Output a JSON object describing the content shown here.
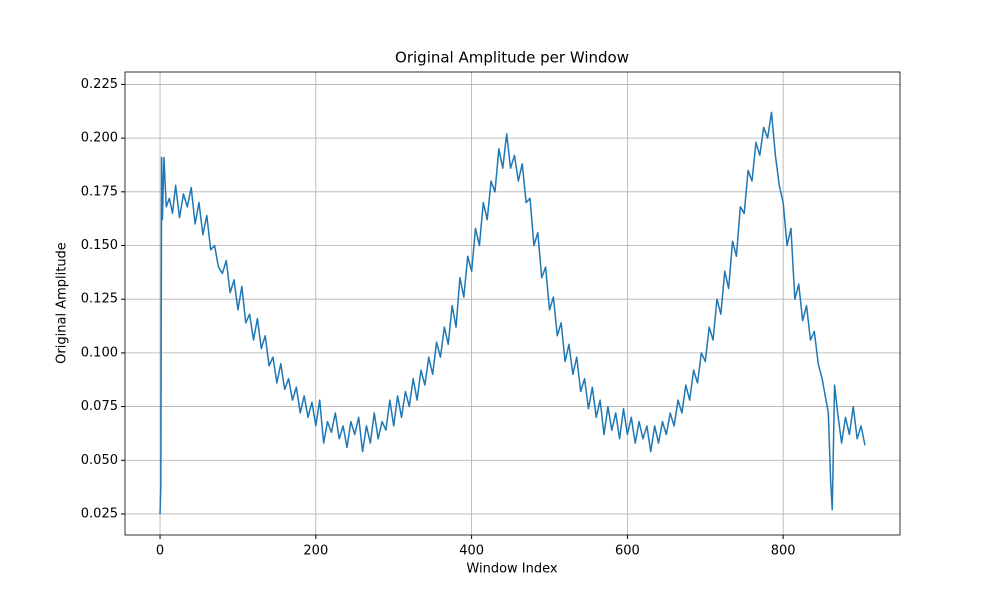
{
  "chart_data": {
    "type": "line",
    "title": "Original Amplitude per Window",
    "xlabel": "Window Index",
    "ylabel": "Original Amplitude",
    "xlim": [
      -45,
      950
    ],
    "xticks": [
      0,
      200,
      400,
      600,
      800
    ],
    "ylim": [
      0.0152,
      0.2308
    ],
    "yticks": [
      0.025,
      {
        "value": 0.05,
        "label": "0.050"
      },
      0.075,
      {
        "value": 0.1,
        "label": "0.100"
      },
      0.125,
      {
        "value": 0.15,
        "label": "0.150"
      },
      0.175,
      {
        "value": 0.2,
        "label": "0.200"
      },
      0.225
    ],
    "grid": true,
    "x": [
      0,
      1,
      2,
      3,
      5,
      8,
      12,
      16,
      20,
      25,
      30,
      35,
      40,
      45,
      50,
      55,
      60,
      65,
      70,
      75,
      80,
      85,
      90,
      95,
      100,
      105,
      110,
      115,
      120,
      125,
      130,
      135,
      140,
      145,
      150,
      155,
      160,
      165,
      170,
      175,
      180,
      185,
      190,
      195,
      200,
      205,
      210,
      215,
      220,
      225,
      230,
      235,
      240,
      245,
      250,
      255,
      260,
      265,
      270,
      275,
      280,
      285,
      290,
      295,
      300,
      305,
      310,
      315,
      320,
      325,
      330,
      335,
      340,
      345,
      350,
      355,
      360,
      365,
      370,
      375,
      380,
      385,
      390,
      395,
      400,
      405,
      410,
      415,
      420,
      425,
      430,
      435,
      440,
      445,
      450,
      455,
      460,
      465,
      470,
      475,
      480,
      485,
      490,
      495,
      500,
      505,
      510,
      515,
      520,
      525,
      530,
      535,
      540,
      545,
      550,
      555,
      560,
      565,
      570,
      575,
      580,
      585,
      590,
      595,
      600,
      605,
      610,
      615,
      620,
      625,
      630,
      635,
      640,
      645,
      650,
      655,
      660,
      665,
      670,
      675,
      680,
      685,
      690,
      695,
      700,
      705,
      710,
      715,
      720,
      725,
      730,
      735,
      740,
      745,
      750,
      755,
      760,
      765,
      770,
      775,
      780,
      785,
      790,
      795,
      800,
      805,
      810,
      815,
      820,
      825,
      830,
      835,
      840,
      845,
      850,
      855,
      858,
      861,
      863,
      866,
      870,
      875,
      880,
      885,
      890,
      895,
      900,
      905
    ],
    "series": [
      {
        "name": "Original Amplitude",
        "color": "#1f77b4",
        "values": [
          0.025,
          0.039,
          0.191,
          0.162,
          0.191,
          0.168,
          0.172,
          0.165,
          0.178,
          0.163,
          0.174,
          0.168,
          0.177,
          0.16,
          0.17,
          0.155,
          0.164,
          0.148,
          0.15,
          0.14,
          0.137,
          0.143,
          0.128,
          0.134,
          0.12,
          0.131,
          0.114,
          0.118,
          0.106,
          0.116,
          0.102,
          0.108,
          0.094,
          0.098,
          0.086,
          0.095,
          0.083,
          0.088,
          0.078,
          0.084,
          0.072,
          0.08,
          0.07,
          0.077,
          0.066,
          0.078,
          0.058,
          0.068,
          0.063,
          0.072,
          0.06,
          0.066,
          0.056,
          0.068,
          0.062,
          0.07,
          0.054,
          0.066,
          0.058,
          0.072,
          0.06,
          0.068,
          0.064,
          0.078,
          0.066,
          0.08,
          0.07,
          0.082,
          0.075,
          0.088,
          0.078,
          0.092,
          0.085,
          0.098,
          0.09,
          0.105,
          0.098,
          0.112,
          0.104,
          0.122,
          0.112,
          0.135,
          0.126,
          0.145,
          0.138,
          0.158,
          0.15,
          0.17,
          0.162,
          0.18,
          0.175,
          0.195,
          0.186,
          0.202,
          0.186,
          0.192,
          0.18,
          0.188,
          0.17,
          0.172,
          0.15,
          0.156,
          0.135,
          0.14,
          0.12,
          0.126,
          0.108,
          0.114,
          0.096,
          0.104,
          0.09,
          0.098,
          0.082,
          0.088,
          0.074,
          0.084,
          0.07,
          0.078,
          0.062,
          0.075,
          0.064,
          0.072,
          0.06,
          0.074,
          0.062,
          0.07,
          0.058,
          0.068,
          0.06,
          0.066,
          0.054,
          0.066,
          0.058,
          0.068,
          0.062,
          0.072,
          0.066,
          0.078,
          0.072,
          0.085,
          0.078,
          0.092,
          0.086,
          0.1,
          0.096,
          0.112,
          0.106,
          0.125,
          0.118,
          0.138,
          0.13,
          0.152,
          0.145,
          0.168,
          0.165,
          0.185,
          0.18,
          0.198,
          0.192,
          0.205,
          0.2,
          0.212,
          0.192,
          0.178,
          0.17,
          0.15,
          0.158,
          0.125,
          0.132,
          0.115,
          0.122,
          0.106,
          0.11,
          0.095,
          0.088,
          0.078,
          0.072,
          0.04,
          0.027,
          0.085,
          0.072,
          0.058,
          0.07,
          0.062,
          0.075,
          0.06,
          0.066,
          0.057
        ]
      }
    ]
  }
}
